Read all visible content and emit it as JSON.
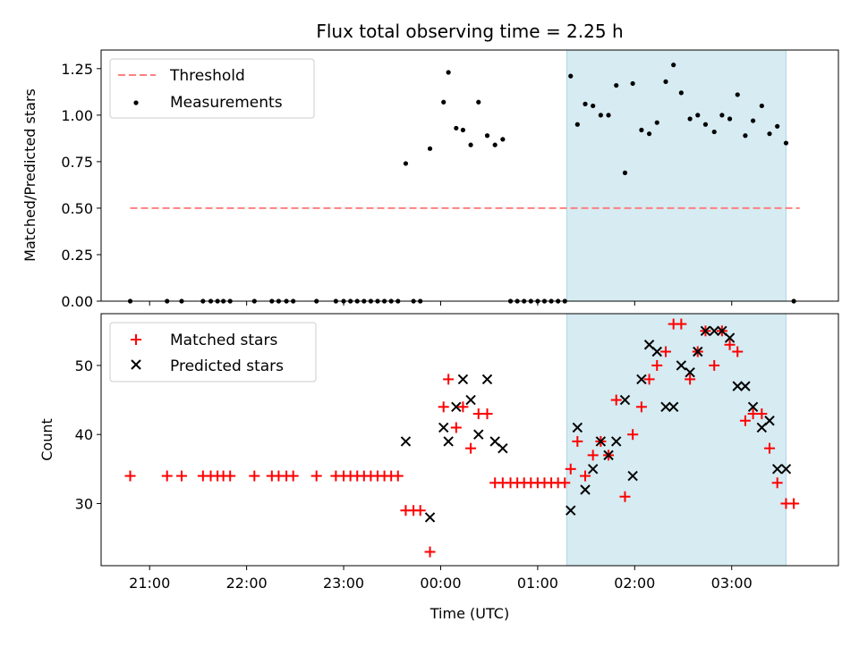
{
  "chart_data": {
    "type": "scatter",
    "title": "Flux total observing time = 2.25 h",
    "xlabel": "Time (UTC)",
    "x_unit": "hours since 00:00 UTC",
    "xlim": [
      -3.5,
      4.1
    ],
    "xticks": [
      {
        "v": -3,
        "label": "21:00"
      },
      {
        "v": -2,
        "label": "22:00"
      },
      {
        "v": -1,
        "label": "23:00"
      },
      {
        "v": 0,
        "label": "00:00"
      },
      {
        "v": 1,
        "label": "01:00"
      },
      {
        "v": 2,
        "label": "02:00"
      },
      {
        "v": 3,
        "label": "03:00"
      }
    ],
    "highlight_span": [
      1.3,
      3.56
    ],
    "colors": {
      "threshold": "#ff7f7f",
      "measurements": "#000000",
      "matched": "#ff0000",
      "predicted": "#000000",
      "span": "#add8e6"
    },
    "top": {
      "ylabel": "Matched/Predicted stars",
      "ylim": [
        0,
        1.35
      ],
      "yticks": [
        "0.00",
        "0.25",
        "0.50",
        "0.75",
        "1.00",
        "1.25"
      ],
      "threshold": {
        "name": "Threshold",
        "y": 0.5,
        "x": [
          -3.2,
          3.7
        ]
      },
      "measurements_name": "Measurements",
      "x": [
        -3.2,
        -2.82,
        -2.67,
        -2.45,
        -2.37,
        -2.3,
        -2.24,
        -2.17,
        -1.92,
        -1.74,
        -1.67,
        -1.59,
        -1.52,
        -1.28,
        -1.08,
        -1.0,
        -0.93,
        -0.86,
        -0.79,
        -0.72,
        -0.65,
        -0.58,
        -0.51,
        -0.44,
        -0.36,
        -0.28,
        -0.21,
        -0.11,
        0.03,
        0.08,
        0.16,
        0.23,
        0.31,
        0.39,
        0.48,
        0.56,
        0.64,
        0.72,
        0.79,
        0.86,
        0.93,
        1.0,
        1.07,
        1.14,
        1.21,
        1.28,
        1.34,
        1.41,
        1.49,
        1.57,
        1.65,
        1.73,
        1.81,
        1.9,
        1.98,
        2.07,
        2.15,
        2.23,
        2.32,
        2.4,
        2.48,
        2.57,
        2.65,
        2.73,
        2.82,
        2.9,
        2.98,
        3.06,
        3.14,
        3.22,
        3.31,
        3.39,
        3.47,
        3.56,
        3.64
      ],
      "y": [
        0,
        0,
        0,
        0,
        0,
        0,
        0,
        0,
        0,
        0,
        0,
        0,
        0,
        0,
        0,
        0,
        0,
        0,
        0,
        0,
        0,
        0,
        0,
        0,
        0.74,
        0,
        0,
        0.82,
        1.07,
        1.23,
        0.93,
        0.92,
        0.84,
        1.07,
        0.89,
        0.84,
        0.87,
        0,
        0,
        0,
        0,
        0,
        0,
        0,
        0,
        0,
        1.21,
        0.95,
        1.06,
        1.05,
        1.0,
        1.0,
        1.16,
        0.69,
        1.17,
        0.92,
        0.9,
        0.96,
        1.18,
        1.27,
        1.12,
        0.98,
        1.0,
        0.95,
        0.91,
        1.0,
        0.98,
        1.11,
        0.89,
        0.97,
        1.05,
        0.9,
        0.94,
        0.85,
        0
      ]
    },
    "bottom": {
      "ylabel": "Count",
      "ylim": [
        21,
        57.5
      ],
      "yticks": [
        "30",
        "40",
        "50"
      ],
      "series": [
        {
          "name": "Matched stars",
          "marker": "plus",
          "x": [
            -3.2,
            -2.82,
            -2.67,
            -2.45,
            -2.37,
            -2.3,
            -2.24,
            -2.17,
            -1.92,
            -1.74,
            -1.67,
            -1.59,
            -1.52,
            -1.28,
            -1.08,
            -1.0,
            -0.93,
            -0.86,
            -0.79,
            -0.72,
            -0.65,
            -0.58,
            -0.51,
            -0.44,
            -0.36,
            -0.28,
            -0.21,
            -0.11,
            0.03,
            0.08,
            0.16,
            0.23,
            0.31,
            0.39,
            0.48,
            0.56,
            0.64,
            0.72,
            0.79,
            0.86,
            0.93,
            1.0,
            1.07,
            1.14,
            1.21,
            1.28,
            1.34,
            1.41,
            1.49,
            1.57,
            1.65,
            1.73,
            1.81,
            1.9,
            1.98,
            2.07,
            2.15,
            2.23,
            2.32,
            2.4,
            2.48,
            2.57,
            2.65,
            2.73,
            2.82,
            2.9,
            2.98,
            3.06,
            3.14,
            3.22,
            3.31,
            3.39,
            3.47,
            3.56,
            3.64
          ],
          "y": [
            34,
            34,
            34,
            34,
            34,
            34,
            34,
            34,
            34,
            34,
            34,
            34,
            34,
            34,
            34,
            34,
            34,
            34,
            34,
            34,
            34,
            34,
            34,
            34,
            29,
            29,
            29,
            23,
            44,
            48,
            41,
            44,
            38,
            43,
            43,
            33,
            33,
            33,
            33,
            33,
            33,
            33,
            33,
            33,
            33,
            33,
            35,
            39,
            34,
            37,
            39,
            37,
            45,
            31,
            40,
            44,
            48,
            50,
            52,
            56,
            56,
            48,
            52,
            55,
            50,
            55,
            53,
            52,
            42,
            43,
            43,
            38,
            33,
            30,
            30
          ]
        },
        {
          "name": "Predicted stars",
          "marker": "x",
          "x": [
            -0.36,
            -0.11,
            0.03,
            0.08,
            0.16,
            0.23,
            0.31,
            0.39,
            0.48,
            0.56,
            0.64,
            1.34,
            1.41,
            1.49,
            1.57,
            1.65,
            1.73,
            1.81,
            1.9,
            1.98,
            2.07,
            2.15,
            2.23,
            2.32,
            2.4,
            2.48,
            2.57,
            2.65,
            2.73,
            2.82,
            2.9,
            2.98,
            3.06,
            3.14,
            3.22,
            3.31,
            3.39,
            3.47,
            3.56
          ],
          "y": [
            39,
            28,
            41,
            39,
            44,
            48,
            45,
            40,
            48,
            39,
            38,
            29,
            41,
            32,
            35,
            39,
            37,
            39,
            45,
            34,
            48,
            53,
            52,
            44,
            44,
            50,
            49,
            52,
            55,
            55,
            55,
            54,
            47,
            47,
            44,
            41,
            42,
            35,
            35
          ]
        }
      ]
    }
  }
}
